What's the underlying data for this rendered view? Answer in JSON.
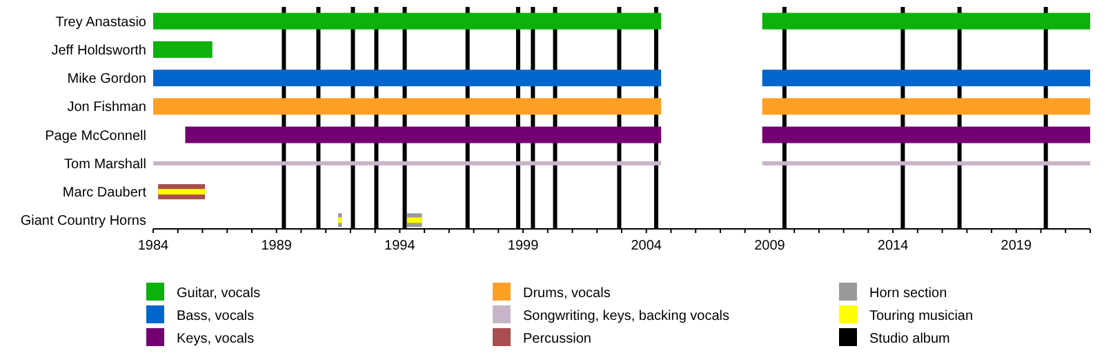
{
  "chart_data": {
    "type": "bar",
    "orientation": "horizontal",
    "legend": "bottom",
    "categories": [
      "Trey Anastasio",
      "Jeff Holdsworth",
      "Mike Gordon",
      "Jon Fishman",
      "Page McConnell",
      "Tom Marshall",
      "Marc Daubert",
      "Giant Country Horns"
    ],
    "xlim": [
      1984,
      2022
    ],
    "xticks": [
      1984,
      {
        "value": 1985,
        "label": null
      },
      {
        "value": 1986,
        "label": null
      },
      {
        "value": 1987,
        "label": null
      },
      {
        "value": 1988,
        "label": null
      },
      1989,
      {
        "value": 1990,
        "label": null
      },
      {
        "value": 1991,
        "label": null
      },
      {
        "value": 1992,
        "label": null
      },
      {
        "value": 1993,
        "label": null
      },
      1994,
      {
        "value": 1995,
        "label": null
      },
      {
        "value": 1996,
        "label": null
      },
      {
        "value": 1997,
        "label": null
      },
      {
        "value": 1998,
        "label": null
      },
      1999,
      {
        "value": 2000,
        "label": null
      },
      {
        "value": 2001,
        "label": null
      },
      {
        "value": 2002,
        "label": null
      },
      {
        "value": 2003,
        "label": null
      },
      2004,
      {
        "value": 2005,
        "label": null
      },
      {
        "value": 2006,
        "label": null
      },
      {
        "value": 2007,
        "label": null
      },
      {
        "value": 2008,
        "label": null
      },
      2009,
      {
        "value": 2010,
        "label": null
      },
      {
        "value": 2011,
        "label": null
      },
      {
        "value": 2012,
        "label": null
      },
      {
        "value": 2013,
        "label": null
      },
      2014,
      {
        "value": 2015,
        "label": null
      },
      {
        "value": 2016,
        "label": null
      },
      {
        "value": 2017,
        "label": null
      },
      {
        "value": 2018,
        "label": null
      },
      2019,
      {
        "value": 2020,
        "label": null
      },
      {
        "value": 2021,
        "label": null
      },
      {
        "value": 2022,
        "label": null
      }
    ],
    "series": [
      {
        "name": "Guitar, vocals",
        "color": "#0cb10c",
        "base": [
          1984,
          1984,
          null,
          null,
          null,
          null,
          null,
          null
        ],
        "values": [
          20.6,
          2.4,
          null,
          null,
          null,
          null,
          null,
          null
        ]
      },
      {
        "name": "Bass, vocals",
        "color": "#0066cc",
        "base": [
          null,
          null,
          1984,
          null,
          null,
          null,
          null,
          null
        ],
        "values": [
          null,
          null,
          20.6,
          null,
          null,
          null,
          null,
          null
        ]
      },
      {
        "name": "Keys, vocals",
        "color": "#730070",
        "base": [
          null,
          null,
          null,
          null,
          1985.3,
          null,
          null,
          null
        ],
        "values": [
          null,
          null,
          null,
          null,
          19.3,
          null,
          null,
          null
        ]
      },
      {
        "name": "Drums, vocals",
        "color": "#ffa024",
        "base": [
          null,
          null,
          null,
          1984,
          null,
          null,
          null,
          null
        ],
        "values": [
          null,
          null,
          null,
          20.6,
          null,
          null,
          null,
          null
        ]
      },
      {
        "name": "Songwriting, keys, backing vocals",
        "color": "#c8b4c8",
        "base": [
          null,
          null,
          null,
          null,
          null,
          1984,
          null,
          null
        ],
        "values": [
          null,
          null,
          null,
          null,
          null,
          20.6,
          null,
          null
        ]
      },
      {
        "name": "Percussion",
        "color": "#a84e4e",
        "base": [
          null,
          null,
          null,
          null,
          null,
          null,
          1984.2,
          null
        ],
        "values": [
          null,
          null,
          null,
          null,
          null,
          null,
          1.9,
          null
        ]
      },
      {
        "name": "Horn section",
        "color": "#999999",
        "base": [
          null,
          null,
          null,
          null,
          null,
          null,
          null,
          1991.5
        ],
        "values": [
          null,
          null,
          null,
          null,
          null,
          null,
          null,
          0.15
        ]
      },
      {
        "name": "Touring musician",
        "color": "#ffff00",
        "base": [
          null,
          null,
          null,
          null,
          null,
          null,
          1984.2,
          1991.5
        ],
        "values": [
          null,
          null,
          null,
          null,
          null,
          null,
          1.9,
          0.15
        ]
      },
      {
        "name": "Studio album",
        "color": "#000000",
        "values": [
          null,
          null,
          null,
          null,
          null,
          null,
          null,
          null
        ]
      },
      {
        "color": "#0cb10c",
        "base": [
          2008.7,
          null,
          null,
          null,
          null,
          null,
          null,
          null
        ],
        "values": [
          13.3,
          null,
          null,
          null,
          null,
          null,
          null,
          null
        ]
      },
      {
        "color": "#0066cc",
        "base": [
          null,
          null,
          2008.7,
          null,
          null,
          null,
          null,
          null
        ],
        "values": [
          null,
          null,
          13.3,
          null,
          null,
          null,
          null,
          null
        ]
      },
      {
        "color": "#730070",
        "base": [
          null,
          null,
          null,
          null,
          2008.7,
          null,
          null,
          null
        ],
        "values": [
          null,
          null,
          null,
          null,
          13.3,
          null,
          null,
          null
        ]
      },
      {
        "color": "#ffa024",
        "base": [
          null,
          null,
          null,
          2008.7,
          null,
          null,
          null,
          null
        ],
        "values": [
          null,
          null,
          null,
          13.3,
          null,
          null,
          null,
          null
        ]
      },
      {
        "color": "#c8b4c8",
        "base": [
          null,
          null,
          null,
          null,
          null,
          2008.7,
          null,
          null
        ],
        "values": [
          null,
          null,
          null,
          null,
          null,
          13.3,
          null,
          null
        ]
      },
      {
        "color": "#999999",
        "base": [
          null,
          null,
          null,
          null,
          null,
          null,
          null,
          1994.3
        ],
        "values": [
          null,
          null,
          null,
          null,
          null,
          null,
          null,
          0.6
        ]
      },
      {
        "color": "#ffff00",
        "base": [
          null,
          null,
          null,
          null,
          null,
          null,
          null,
          1994.3
        ],
        "values": [
          null,
          null,
          null,
          null,
          null,
          null,
          null,
          0.6
        ]
      }
    ],
    "ref_lines": [
      {
        "axis": "x",
        "value": 1989.3,
        "color": "#000000"
      },
      {
        "axis": "x",
        "value": 1990.7,
        "color": "#000000"
      },
      {
        "axis": "x",
        "value": 1992.1,
        "color": "#000000"
      },
      {
        "axis": "x",
        "value": 1993.05,
        "color": "#000000"
      },
      {
        "axis": "x",
        "value": 1994.2,
        "color": "#000000"
      },
      {
        "axis": "x",
        "value": 1996.75,
        "color": "#000000"
      },
      {
        "axis": "x",
        "value": 1998.8,
        "color": "#000000"
      },
      {
        "axis": "x",
        "value": 1999.4,
        "color": "#000000"
      },
      {
        "axis": "x",
        "value": 2000.3,
        "color": "#000000"
      },
      {
        "axis": "x",
        "value": 2002.9,
        "color": "#000000"
      },
      {
        "axis": "x",
        "value": 2004.4,
        "color": "#000000"
      },
      {
        "axis": "x",
        "value": 2009.6,
        "color": "#000000"
      },
      {
        "axis": "x",
        "value": 2014.4,
        "color": "#000000"
      },
      {
        "axis": "x",
        "value": 2016.7,
        "color": "#000000"
      },
      {
        "axis": "x",
        "value": 2020.2,
        "color": "#000000"
      }
    ]
  }
}
